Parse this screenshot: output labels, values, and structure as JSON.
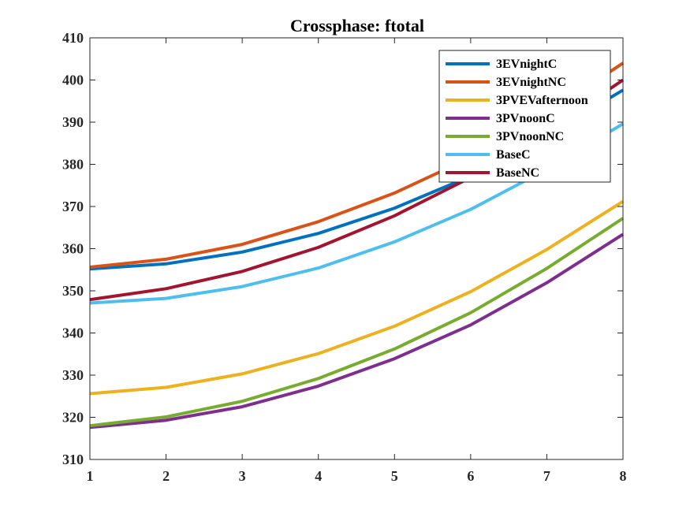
{
  "chart_data": {
    "type": "line",
    "title": "Crossphase: ftotal",
    "xlabel": "",
    "ylabel": "",
    "x": [
      1,
      2,
      3,
      4,
      5,
      6,
      7,
      8
    ],
    "xlim": [
      1,
      8
    ],
    "ylim": [
      310,
      410
    ],
    "xticks": [
      1,
      2,
      3,
      4,
      5,
      6,
      7,
      8
    ],
    "yticks": [
      310,
      320,
      330,
      340,
      350,
      360,
      370,
      380,
      390,
      400,
      410
    ],
    "grid": false,
    "legend_position": "top-right",
    "series": [
      {
        "name": "3EVnightC",
        "color": "#0072BD",
        "values": [
          355.2,
          356.4,
          359.2,
          363.6,
          369.6,
          377.2,
          386.8,
          397.6
        ]
      },
      {
        "name": "3EVnightNC",
        "color": "#D95319",
        "values": [
          355.6,
          357.5,
          361.0,
          366.4,
          373.2,
          381.6,
          392.0,
          404.0
        ]
      },
      {
        "name": "3PVEVafternoon",
        "color": "#EDB120",
        "values": [
          325.6,
          327.1,
          330.3,
          335.1,
          341.6,
          349.8,
          359.8,
          371.2
        ]
      },
      {
        "name": "3PVnoonC",
        "color": "#7E2F8E",
        "values": [
          317.6,
          319.3,
          322.5,
          327.4,
          333.9,
          341.9,
          351.9,
          363.4
        ]
      },
      {
        "name": "3PVnoonNC",
        "color": "#77AC30",
        "values": [
          318.0,
          320.1,
          323.8,
          329.2,
          336.2,
          344.8,
          355.3,
          367.2
        ]
      },
      {
        "name": "BaseC",
        "color": "#4DBEEE",
        "values": [
          347.1,
          348.2,
          351.0,
          355.4,
          361.6,
          369.3,
          378.8,
          389.6
        ]
      },
      {
        "name": "BaseNC",
        "color": "#A2142F",
        "values": [
          347.9,
          350.5,
          354.6,
          360.3,
          367.8,
          376.9,
          387.8,
          400.0
        ]
      }
    ]
  }
}
